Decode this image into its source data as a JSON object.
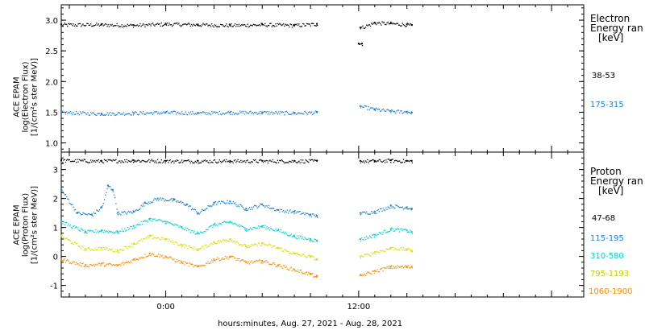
{
  "xlabel": "hours:minutes, Aug. 27, 2021 - Aug. 28, 2021",
  "chart_data": [
    {
      "type": "scatter",
      "panel": "electron",
      "ylabel_lines": [
        "ACE EPAM",
        "log(Electron Flux)",
        "[1/(cm²s ster MeV)]"
      ],
      "ylim": [
        0.85,
        3.25
      ],
      "yticks": [
        1.0,
        1.5,
        2.0,
        2.5,
        3.0
      ],
      "ytick_labels": [
        "1.0",
        "1.5",
        "2.0",
        "2.5",
        "3.0"
      ],
      "xlim": [
        -6.5,
        26
      ],
      "xticks": [
        0,
        12
      ],
      "xtick_labels": [
        "0:00",
        "12:00"
      ],
      "legend_title": [
        "Electron",
        "Energy ran",
        "[keV]"
      ],
      "series": [
        {
          "name": "38-53",
          "color": "#000000",
          "segments": [
            {
              "x": [
                -6.5,
                -4,
                -2,
                0,
                2,
                4,
                6,
                8,
                9.4
              ],
              "y": [
                2.93,
                2.93,
                2.92,
                2.94,
                2.93,
                2.92,
                2.93,
                2.92,
                2.94
              ]
            },
            {
              "x": [
                12,
                12.2
              ],
              "y": [
                2.62,
                2.62
              ]
            },
            {
              "x": [
                12.1,
                13,
                14,
                15,
                15.3
              ],
              "y": [
                2.88,
                2.96,
                2.95,
                2.93,
                2.92
              ]
            }
          ]
        },
        {
          "name": "175-315",
          "color": "#1e7fd6",
          "segments": [
            {
              "x": [
                -6.5,
                -4,
                -2,
                0,
                2,
                4,
                6,
                8,
                9.4
              ],
              "y": [
                1.5,
                1.48,
                1.49,
                1.5,
                1.49,
                1.5,
                1.5,
                1.49,
                1.5
              ]
            },
            {
              "x": [
                12.1,
                13,
                14,
                15,
                15.3
              ],
              "y": [
                1.6,
                1.55,
                1.52,
                1.51,
                1.5
              ]
            }
          ]
        }
      ]
    },
    {
      "type": "scatter",
      "panel": "proton",
      "ylabel_lines": [
        "ACE EPAM",
        "log(Proton Flux)",
        "[1/(cm²s ster MeV)]"
      ],
      "ylim": [
        -1.4,
        3.6
      ],
      "yticks": [
        -1,
        0,
        1,
        2,
        3
      ],
      "ytick_labels": [
        "-1",
        "0",
        "1",
        "2",
        "3"
      ],
      "xlim": [
        -6.5,
        26
      ],
      "xticks": [
        0,
        12
      ],
      "xtick_labels": [
        "0:00",
        "12:00"
      ],
      "legend_title": [
        "Proton",
        "Energy ran",
        "[keV]"
      ],
      "series": [
        {
          "name": "47-68",
          "color": "#000000",
          "segments": [
            {
              "x": [
                -6.5,
                -4,
                -2,
                0,
                2,
                4,
                6,
                8,
                9.4
              ],
              "y": [
                3.32,
                3.3,
                3.32,
                3.3,
                3.3,
                3.3,
                3.3,
                3.3,
                3.3
              ]
            },
            {
              "x": [
                12.1,
                13,
                14,
                15,
                15.3
              ],
              "y": [
                3.3,
                3.3,
                3.32,
                3.3,
                3.3
              ]
            }
          ]
        },
        {
          "name": "115-195",
          "color": "#1e7fd6",
          "segments": [
            {
              "x": [
                -6.5,
                -5.5,
                -4.6,
                -4,
                -3.6,
                -3.3,
                -3,
                -2,
                -1.3,
                -0.5,
                0.5,
                1.3,
                2,
                3,
                4,
                5,
                6,
                7,
                8,
                9,
                9.4
              ],
              "y": [
                2.3,
                1.5,
                1.45,
                1.7,
                2.45,
                2.3,
                1.5,
                1.55,
                1.85,
                2.0,
                1.95,
                1.8,
                1.5,
                1.85,
                1.9,
                1.65,
                1.8,
                1.6,
                1.55,
                1.45,
                1.4
              ]
            },
            {
              "x": [
                12.1,
                13,
                14,
                15,
                15.3
              ],
              "y": [
                1.5,
                1.55,
                1.75,
                1.7,
                1.65
              ]
            }
          ]
        },
        {
          "name": "310-580",
          "color": "#00d0d0",
          "segments": [
            {
              "x": [
                -6.5,
                -5,
                -4,
                -3,
                -2,
                -1,
                0,
                1,
                2,
                3,
                4,
                5,
                6,
                7,
                8,
                9,
                9.4
              ],
              "y": [
                1.2,
                0.85,
                0.9,
                0.85,
                1.05,
                1.3,
                1.2,
                1.0,
                0.8,
                1.1,
                1.2,
                0.95,
                1.05,
                0.9,
                0.7,
                0.6,
                0.55
              ]
            },
            {
              "x": [
                12.1,
                13,
                14,
                15,
                15.3
              ],
              "y": [
                0.6,
                0.75,
                0.95,
                0.9,
                0.85
              ]
            }
          ]
        },
        {
          "name": "795-1193",
          "color": "#d8e000",
          "segments": [
            {
              "x": [
                -6.5,
                -5,
                -4,
                -3,
                -2,
                -1,
                0,
                1,
                2,
                3,
                4,
                5,
                6,
                7,
                8,
                9,
                9.4
              ],
              "y": [
                0.7,
                0.25,
                0.3,
                0.2,
                0.45,
                0.7,
                0.6,
                0.4,
                0.25,
                0.5,
                0.6,
                0.35,
                0.45,
                0.3,
                0.1,
                0.0,
                -0.1
              ]
            },
            {
              "x": [
                12.1,
                13,
                14,
                15,
                15.3
              ],
              "y": [
                0.0,
                0.15,
                0.3,
                0.25,
                0.2
              ]
            }
          ]
        },
        {
          "name": "1060-1900",
          "color": "#ff8c00",
          "segments": [
            {
              "x": [
                -6.5,
                -5,
                -4,
                -3,
                -2,
                -1,
                0,
                1,
                2,
                3,
                4,
                5,
                6,
                7,
                8,
                9,
                9.4
              ],
              "y": [
                -0.1,
                -0.3,
                -0.25,
                -0.3,
                -0.1,
                0.1,
                0.0,
                -0.2,
                -0.35,
                -0.1,
                0.0,
                -0.2,
                -0.15,
                -0.3,
                -0.45,
                -0.6,
                -0.7
              ]
            },
            {
              "x": [
                12.1,
                13,
                14,
                15,
                15.3
              ],
              "y": [
                -0.65,
                -0.5,
                -0.35,
                -0.35,
                -0.35
              ]
            }
          ]
        }
      ]
    }
  ]
}
